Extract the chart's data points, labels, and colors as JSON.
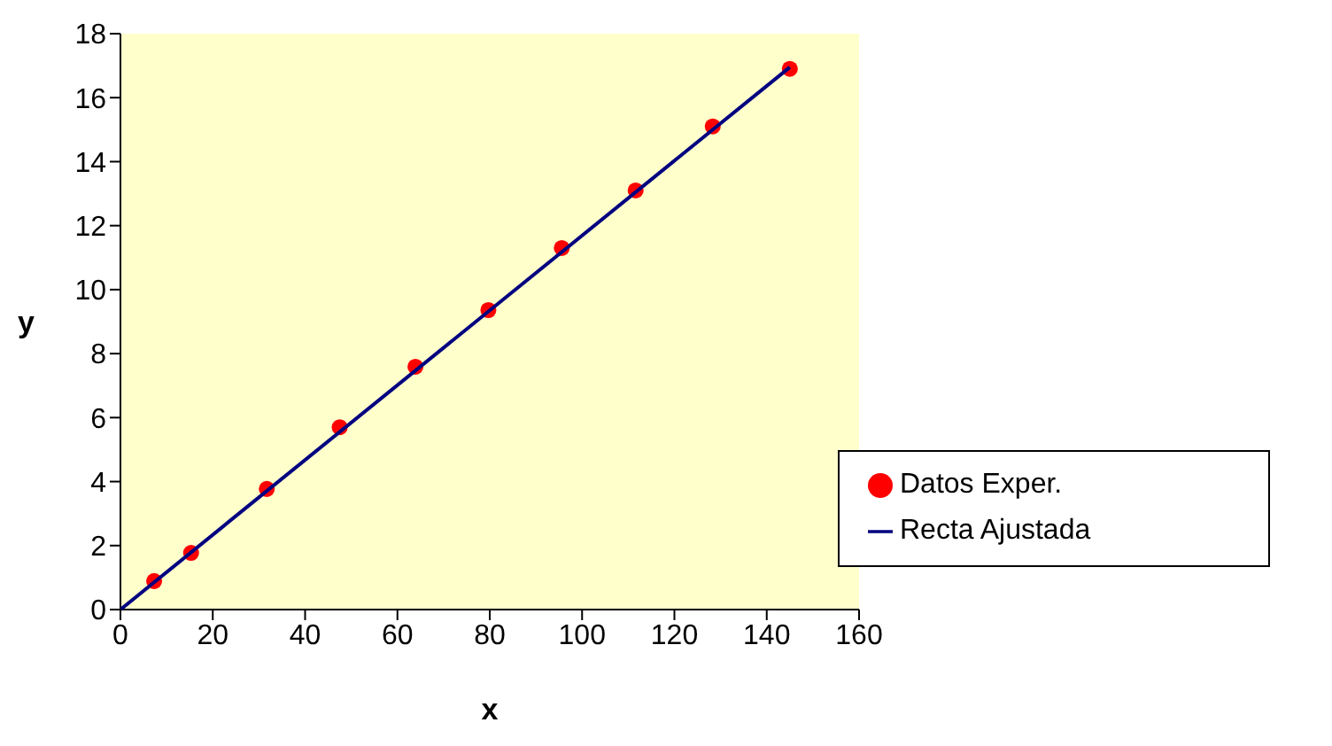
{
  "chart_data": {
    "type": "scatter",
    "xlabel": "x",
    "ylabel": "y",
    "xlim": [
      0,
      160
    ],
    "xticks": [
      0,
      20,
      40,
      60,
      80,
      100,
      120,
      140,
      160
    ],
    "ylim": [
      0,
      18
    ],
    "yticks": [
      0,
      2,
      4,
      6,
      8,
      10,
      12,
      14,
      16,
      18
    ],
    "grid": false,
    "legend": "bottom right",
    "marker": "circle",
    "series": [
      {
        "name": "Datos Exper.",
        "type": "scatter",
        "color": "#ff0000",
        "x": [
          7.3,
          15.3,
          31.7,
          47.5,
          63.9,
          79.7,
          95.6,
          111.6,
          128.3,
          145
        ],
        "values": [
          0.89,
          1.77,
          3.77,
          5.7,
          7.59,
          9.36,
          11.3,
          13.1,
          15.1,
          16.9
        ]
      },
      {
        "name": "Recta Ajustada",
        "type": "line",
        "color": "#000080",
        "marker": "none",
        "line_style": "solid",
        "x": [
          0,
          145
        ],
        "values": [
          0,
          16.95
        ]
      }
    ]
  }
}
